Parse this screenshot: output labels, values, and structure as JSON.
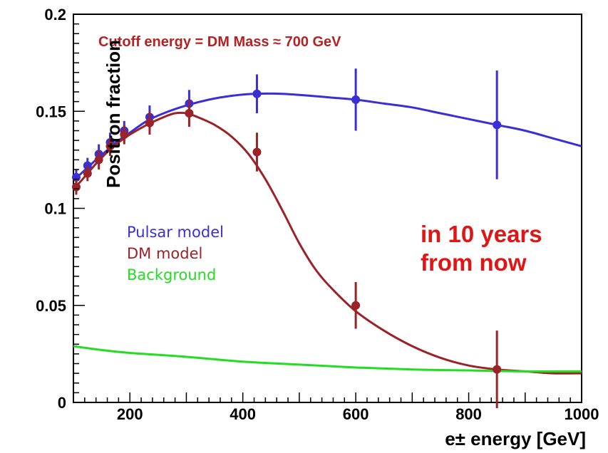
{
  "chart_data": {
    "type": "line",
    "title": "Cutoff energy = DM Mass ≈ 700 GeV",
    "xlabel": "e± energy [GeV]",
    "ylabel": "Positron fraction",
    "xlim": [
      100,
      1000
    ],
    "ylim": [
      0,
      0.2
    ],
    "xticks": [
      200,
      400,
      600,
      800,
      1000
    ],
    "yticks": [
      0,
      0.05,
      0.1,
      0.15,
      0.2
    ],
    "ytick_labels": [
      "0",
      "0.05",
      "0.1",
      "0.15",
      "0.2"
    ],
    "legend_position": "center-left",
    "annotation": [
      "in 10 years",
      "from now"
    ],
    "grid": false,
    "series": [
      {
        "name": "Pulsar model",
        "color": "#3a2fd6",
        "curve": {
          "x": [
            100,
            110,
            125,
            140,
            160,
            180,
            200,
            230,
            260,
            300,
            340,
            380,
            420,
            470,
            520,
            560,
            600,
            650,
            700,
            750,
            800,
            850,
            900,
            950,
            1000
          ],
          "y": [
            0.115,
            0.117,
            0.121,
            0.125,
            0.13,
            0.135,
            0.139,
            0.145,
            0.149,
            0.153,
            0.156,
            0.158,
            0.159,
            0.159,
            0.158,
            0.157,
            0.156,
            0.154,
            0.152,
            0.149,
            0.146,
            0.143,
            0.14,
            0.136,
            0.132
          ]
        },
        "points": {
          "x": [
            105,
            125,
            145,
            165,
            190,
            235,
            305,
            425,
            600,
            850
          ],
          "y": [
            0.116,
            0.122,
            0.128,
            0.134,
            0.14,
            0.147,
            0.154,
            0.159,
            0.156,
            0.143
          ],
          "err": [
            0.004,
            0.004,
            0.005,
            0.005,
            0.005,
            0.006,
            0.007,
            0.01,
            0.016,
            0.028
          ]
        }
      },
      {
        "name": "DM model",
        "color": "#9b2226",
        "curve": {
          "x": [
            100,
            110,
            125,
            140,
            160,
            180,
            200,
            230,
            260,
            280,
            300,
            320,
            350,
            380,
            410,
            440,
            470,
            500,
            530,
            560,
            600,
            650,
            700,
            750,
            800,
            850,
            900,
            950,
            1000
          ],
          "y": [
            0.111,
            0.113,
            0.118,
            0.123,
            0.129,
            0.134,
            0.138,
            0.143,
            0.147,
            0.149,
            0.149,
            0.147,
            0.143,
            0.137,
            0.128,
            0.115,
            0.099,
            0.082,
            0.068,
            0.058,
            0.047,
            0.037,
            0.029,
            0.023,
            0.019,
            0.017,
            0.016,
            0.015,
            0.015
          ]
        },
        "points": {
          "x": [
            105,
            125,
            145,
            165,
            190,
            235,
            305,
            425,
            600,
            850
          ],
          "y": [
            0.111,
            0.118,
            0.125,
            0.132,
            0.138,
            0.144,
            0.149,
            0.129,
            0.05,
            0.017
          ],
          "err": [
            0.004,
            0.004,
            0.005,
            0.005,
            0.005,
            0.006,
            0.007,
            0.01,
            0.012,
            0.02
          ]
        }
      },
      {
        "name": "Background",
        "color": "#22dd22",
        "curve": {
          "x": [
            100,
            150,
            200,
            300,
            400,
            500,
            600,
            700,
            800,
            900,
            1000
          ],
          "y": [
            0.029,
            0.027,
            0.0255,
            0.0235,
            0.021,
            0.0195,
            0.018,
            0.017,
            0.0165,
            0.016,
            0.016
          ]
        }
      }
    ]
  }
}
